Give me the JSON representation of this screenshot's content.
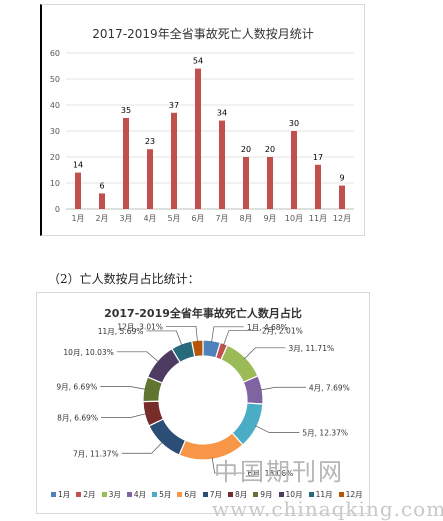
{
  "section_heading": "（2）亡人数按月占比统计：",
  "watermark": {
    "cn": "中国期刊网",
    "url": "www.chinaqking.com"
  },
  "chart_data": [
    {
      "type": "bar",
      "title": "2017-2019年全省事故死亡人数按月统计",
      "categories": [
        "1月",
        "2月",
        "3月",
        "4月",
        "5月",
        "6月",
        "7月",
        "8月",
        "9月",
        "10月",
        "11月",
        "12月"
      ],
      "values": [
        14,
        6,
        35,
        23,
        37,
        54,
        34,
        20,
        20,
        30,
        17,
        9
      ],
      "yticks": [
        0,
        10,
        20,
        30,
        40,
        50,
        60
      ],
      "ylim": [
        0,
        60
      ],
      "grid": true,
      "bar_color": "#c0504d"
    },
    {
      "type": "pie",
      "title": "2017-2019全省年事故死亡人数月占比",
      "categories": [
        "1月",
        "2月",
        "3月",
        "4月",
        "5月",
        "6月",
        "7月",
        "8月",
        "9月",
        "10月",
        "11月",
        "12月"
      ],
      "values": [
        4.68,
        2.01,
        11.71,
        7.69,
        12.37,
        18.06,
        11.37,
        6.69,
        6.69,
        10.03,
        5.69,
        3.01
      ],
      "labels": [
        "1月, 4.68%",
        "2月, 2.01%",
        "3月, 11.71%",
        "4月, 7.69%",
        "5月, 12.37%",
        "6月, 18.06%",
        "7月, 11.37%",
        "8月, 6.69%",
        "9月, 6.69%",
        "10月, 10.03%",
        "11月, 5.69%",
        "12月, 3.01%"
      ],
      "colors": [
        "#4f81bd",
        "#c0504d",
        "#9bbb59",
        "#8064a2",
        "#4bacc6",
        "#f79646",
        "#2c4d75",
        "#772c2a",
        "#5f7530",
        "#4d3b62",
        "#276a7c",
        "#b65708"
      ],
      "legend_position": "bottom",
      "donut": true
    }
  ]
}
